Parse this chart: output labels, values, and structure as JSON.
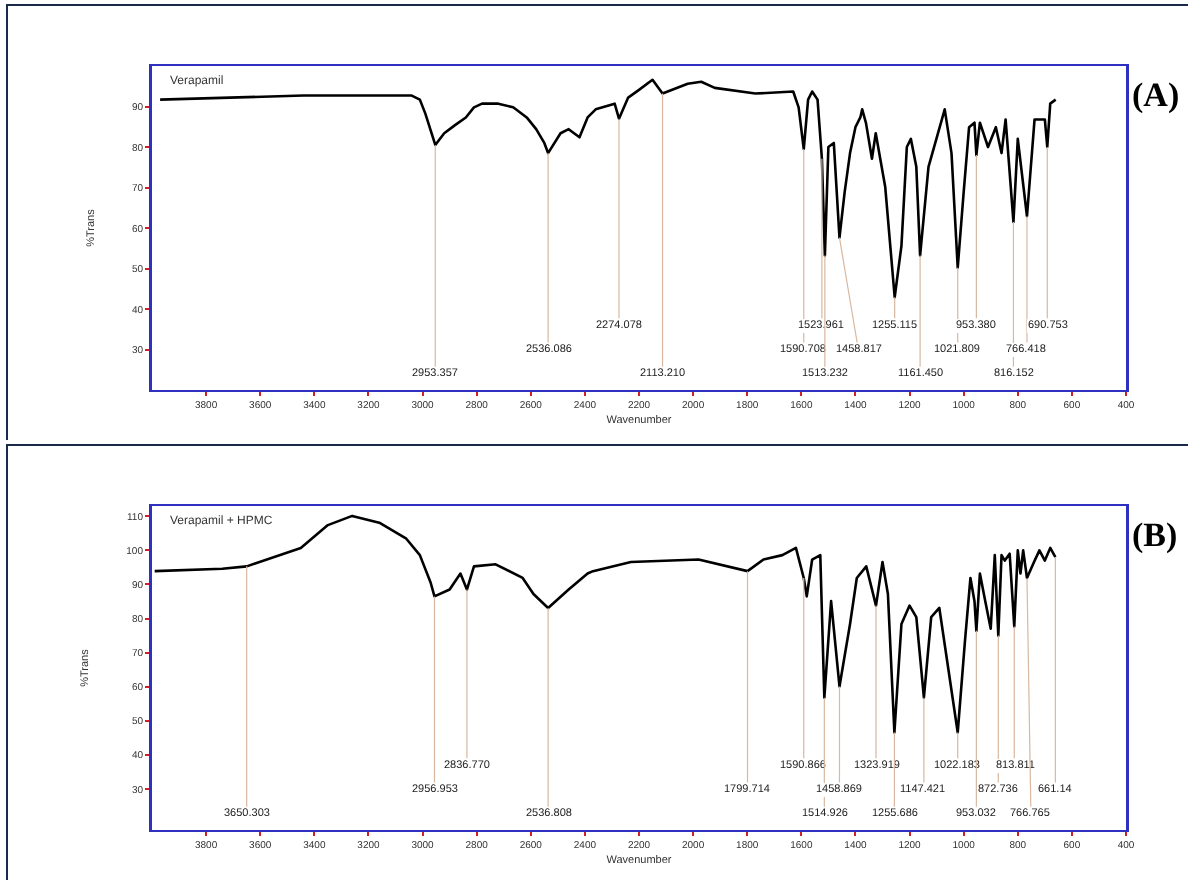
{
  "chart_data": [
    {
      "type": "line",
      "title": "Verapamil",
      "xlabel": "Wavenumber",
      "ylabel": "%Trans",
      "xlim": [
        4000,
        400
      ],
      "ylim": [
        20,
        100
      ],
      "xticks": [
        3800,
        3600,
        3400,
        3200,
        3000,
        2800,
        2600,
        2400,
        2200,
        2000,
        1800,
        1600,
        1400,
        1200,
        1000,
        800,
        600,
        400
      ],
      "yticks": [
        30,
        40,
        50,
        60,
        70,
        80,
        90
      ],
      "grid": false,
      "marker": "none",
      "line_style": "solid",
      "series": [
        {
          "color": "#000000",
          "x": [
            3970,
            3440,
            3040,
            3010,
            2990,
            2953,
            2920,
            2880,
            2840,
            2810,
            2780,
            2720,
            2665,
            2615,
            2580,
            2550,
            2536,
            2490,
            2460,
            2420,
            2390,
            2360,
            2290,
            2274,
            2240,
            2200,
            2150,
            2113,
            2020,
            1970,
            1920,
            1770,
            1630,
            1610,
            1591,
            1575,
            1560,
            1540,
            1524,
            1513,
            1500,
            1480,
            1459,
            1440,
            1420,
            1400,
            1382,
            1375,
            1361,
            1339,
            1325,
            1290,
            1255,
            1230,
            1210,
            1195,
            1175,
            1161,
            1130,
            1070,
            1045,
            1022,
            1000,
            980,
            960,
            953,
            940,
            910,
            881,
            860,
            845,
            816,
            800,
            766,
            738,
            700,
            691,
            680,
            660
          ],
          "values": [
            91.7,
            92.7,
            92.7,
            91.7,
            88.3,
            80.5,
            83.4,
            85.4,
            87.3,
            89.8,
            90.7,
            90.7,
            89.8,
            87.3,
            84.4,
            81.0,
            78.5,
            83.4,
            84.4,
            82.4,
            87.3,
            89.3,
            90.7,
            87.0,
            92.2,
            94.1,
            96.6,
            93.2,
            95.6,
            96.1,
            94.6,
            93.2,
            93.7,
            89.8,
            79.5,
            91.7,
            93.7,
            91.7,
            77.1,
            53.2,
            80.0,
            81.0,
            57.6,
            68.8,
            78.5,
            84.9,
            87.3,
            89.3,
            85.9,
            77.1,
            83.4,
            70.2,
            42.9,
            55.6,
            80.0,
            82.0,
            75.1,
            53.2,
            75.1,
            89.3,
            78.5,
            50.2,
            68.8,
            84.9,
            86.0,
            78.0,
            86.0,
            80.0,
            84.9,
            78.5,
            86.8,
            61.5,
            82.0,
            62.9,
            86.8,
            86.8,
            80.0,
            90.7,
            91.7
          ]
        }
      ],
      "annotations": [
        "(A)",
        {
          "text": "2953.357",
          "x": 2953,
          "y": 80.5
        },
        {
          "text": "2536.086",
          "x": 2536,
          "y": 78.5
        },
        {
          "text": "2274.078",
          "x": 2274,
          "y": 87.0
        },
        {
          "text": "2113.210",
          "x": 2113,
          "y": 93.2
        },
        {
          "text": "1590.708",
          "x": 1591,
          "y": 79.5
        },
        {
          "text": "1523.961",
          "x": 1524,
          "y": 77.1
        },
        {
          "text": "1513.232",
          "x": 1513,
          "y": 53.2
        },
        {
          "text": "1458.817",
          "x": 1459,
          "y": 57.6
        },
        {
          "text": "1255.115",
          "x": 1255,
          "y": 42.9
        },
        {
          "text": "1161.450",
          "x": 1161,
          "y": 53.2
        },
        {
          "text": "1021.809",
          "x": 1022,
          "y": 50.2
        },
        {
          "text": "953.380",
          "x": 953,
          "y": 78.0
        },
        {
          "text": "816.152",
          "x": 816,
          "y": 61.5
        },
        {
          "text": "766.418",
          "x": 766,
          "y": 62.9
        },
        {
          "text": "690.753",
          "x": 691,
          "y": 80.0
        }
      ]
    },
    {
      "type": "line",
      "title": "Verapamil + HPMC",
      "xlabel": "Wavenumber",
      "ylabel": "%Trans",
      "xlim": [
        4000,
        400
      ],
      "ylim": [
        18,
        113
      ],
      "xticks": [
        3800,
        3600,
        3400,
        3200,
        3000,
        2800,
        2600,
        2400,
        2200,
        2000,
        1800,
        1600,
        1400,
        1200,
        1000,
        800,
        600,
        400
      ],
      "yticks": [
        30,
        40,
        50,
        60,
        70,
        80,
        90,
        100,
        110
      ],
      "grid": false,
      "marker": "none",
      "line_style": "solid",
      "series": [
        {
          "color": "#000000",
          "x": [
            3990,
            3740,
            3650,
            3450,
            3350,
            3260,
            3160,
            3060,
            3010,
            2970,
            2956,
            2900,
            2860,
            2836,
            2810,
            2730,
            2630,
            2590,
            2536,
            2460,
            2390,
            2370,
            2230,
            1980,
            1799,
            1740,
            1670,
            1620,
            1591,
            1580,
            1560,
            1530,
            1515,
            1490,
            1459,
            1420,
            1395,
            1360,
            1324,
            1300,
            1280,
            1256,
            1230,
            1200,
            1175,
            1147,
            1120,
            1090,
            1022,
            995,
            975,
            960,
            953,
            940,
            920,
            900,
            885,
            872,
            860,
            848,
            830,
            813,
            800,
            790,
            780,
            766,
            740,
            720,
            700,
            680,
            661
          ],
          "values": [
            93.9,
            94.6,
            95.3,
            100.7,
            107.4,
            110.1,
            108.1,
            103.4,
            98.6,
            90.5,
            86.5,
            88.5,
            93.2,
            88.5,
            95.3,
            95.9,
            91.9,
            87.2,
            83.1,
            88.5,
            93.2,
            93.9,
            96.6,
            97.3,
            93.9,
            97.3,
            98.6,
            100.7,
            91.9,
            86.5,
            97.3,
            98.6,
            56.8,
            85.1,
            60.1,
            78.4,
            91.9,
            95.3,
            83.8,
            96.6,
            87.2,
            46.6,
            78.4,
            83.8,
            80.4,
            56.8,
            80.4,
            83.1,
            46.6,
            73.6,
            91.9,
            85.1,
            76.4,
            93.2,
            85.0,
            77.0,
            98.6,
            75.0,
            98.6,
            97.0,
            99.0,
            77.7,
            100.0,
            93.2,
            100.0,
            91.9,
            96.6,
            100.0,
            97.0,
            100.7,
            98.0
          ]
        }
      ],
      "annotations": [
        "(B)",
        {
          "text": "3650.303",
          "x": 3650,
          "y": 95.3
        },
        {
          "text": "2956.953",
          "x": 2956,
          "y": 86.5
        },
        {
          "text": "2836.770",
          "x": 2836,
          "y": 88.5
        },
        {
          "text": "2536.808",
          "x": 2536,
          "y": 83.1
        },
        {
          "text": "1799.714",
          "x": 1799,
          "y": 93.9
        },
        {
          "text": "1590.866",
          "x": 1591,
          "y": 91.9
        },
        {
          "text": "1514.926",
          "x": 1515,
          "y": 56.8
        },
        {
          "text": "1458.869",
          "x": 1459,
          "y": 60.1
        },
        {
          "text": "1323.919",
          "x": 1324,
          "y": 83.8
        },
        {
          "text": "1255.686",
          "x": 1256,
          "y": 46.6
        },
        {
          "text": "1147.421",
          "x": 1147,
          "y": 56.8
        },
        {
          "text": "1022.183",
          "x": 1022,
          "y": 46.6
        },
        {
          "text": "953.032",
          "x": 953,
          "y": 76.4
        },
        {
          "text": "872.736",
          "x": 872,
          "y": 75.0
        },
        {
          "text": "813.811",
          "x": 813,
          "y": 77.7
        },
        {
          "text": "766.765",
          "x": 766,
          "y": 91.9
        },
        {
          "text": "661.14",
          "x": 661,
          "y": 98.0
        }
      ]
    }
  ]
}
